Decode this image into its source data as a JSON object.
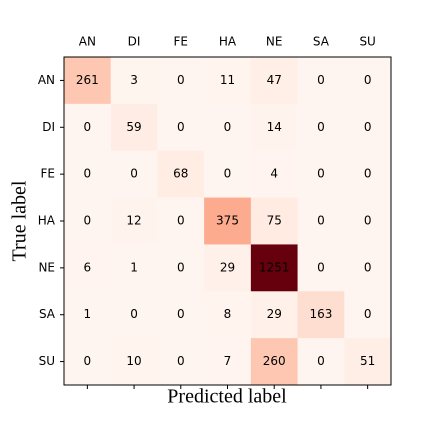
{
  "chart_data": {
    "type": "heatmap",
    "xlabel": "Predicted label",
    "ylabel": "True label",
    "x_categories": [
      "AN",
      "DI",
      "FE",
      "HA",
      "NE",
      "SA",
      "SU"
    ],
    "y_categories": [
      "AN",
      "DI",
      "FE",
      "HA",
      "NE",
      "SA",
      "SU"
    ],
    "values": [
      [
        261,
        3,
        0,
        11,
        47,
        0,
        0
      ],
      [
        0,
        59,
        0,
        0,
        14,
        0,
        0
      ],
      [
        0,
        0,
        68,
        0,
        4,
        0,
        0
      ],
      [
        0,
        12,
        0,
        375,
        75,
        0,
        0
      ],
      [
        6,
        1,
        0,
        29,
        1251,
        0,
        0
      ],
      [
        1,
        0,
        0,
        8,
        29,
        163,
        0
      ],
      [
        0,
        10,
        0,
        7,
        260,
        0,
        51
      ]
    ],
    "colormap": "Reds"
  }
}
